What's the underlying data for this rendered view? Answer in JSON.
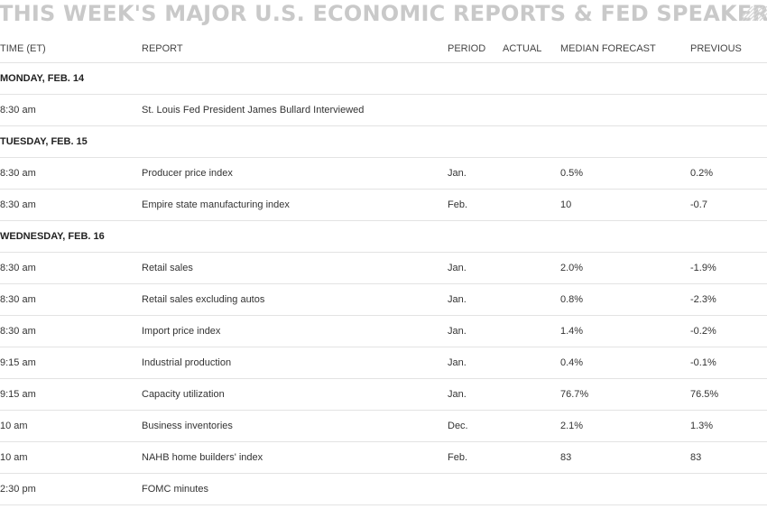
{
  "title": "THIS WEEK'S MAJOR U.S. ECONOMIC REPORTS & FED SPEAKERS",
  "headers": {
    "time": "TIME (ET)",
    "report": "REPORT",
    "period": "PERIOD",
    "actual": "ACTUAL",
    "median": "MEDIAN FORECAST",
    "previous": "PREVIOUS"
  },
  "days": {
    "monday": "MONDAY, FEB. 14",
    "tuesday": "TUESDAY, FEB. 15",
    "wednesday": "WEDNESDAY, FEB. 16"
  },
  "rows": [
    {
      "time": "8:30 am",
      "report": "St. Louis Fed President James Bullard Interviewed",
      "period": "",
      "actual": "",
      "median": "",
      "previous": ""
    },
    {
      "time": "8:30 am",
      "report": "Producer price index",
      "period": "Jan.",
      "actual": "",
      "median": "0.5%",
      "previous": "0.2%"
    },
    {
      "time": "8:30 am",
      "report": "Empire state manufacturing index",
      "period": "Feb.",
      "actual": "",
      "median": "10",
      "previous": "-0.7"
    },
    {
      "time": "8:30 am",
      "report": "Retail sales",
      "period": "Jan.",
      "actual": "",
      "median": "2.0%",
      "previous": "-1.9%"
    },
    {
      "time": "8:30 am",
      "report": "Retail sales excluding autos",
      "period": "Jan.",
      "actual": "",
      "median": "0.8%",
      "previous": "-2.3%"
    },
    {
      "time": "8:30 am",
      "report": "Import price index",
      "period": "Jan.",
      "actual": "",
      "median": "1.4%",
      "previous": "-0.2%"
    },
    {
      "time": "9:15 am",
      "report": "Industrial production",
      "period": "Jan.",
      "actual": "",
      "median": "0.4%",
      "previous": "-0.1%"
    },
    {
      "time": "9:15 am",
      "report": "Capacity utilization",
      "period": "Jan.",
      "actual": "",
      "median": "76.7%",
      "previous": "76.5%"
    },
    {
      "time": "10 am",
      "report": "Business inventories",
      "period": "Dec.",
      "actual": "",
      "median": "2.1%",
      "previous": "1.3%"
    },
    {
      "time": "10 am",
      "report": "NAHB home builders' index",
      "period": "Feb.",
      "actual": "",
      "median": "83",
      "previous": "83"
    },
    {
      "time": "2:30 pm",
      "report": "FOMC minutes",
      "period": "",
      "actual": "",
      "median": "",
      "previous": ""
    }
  ]
}
